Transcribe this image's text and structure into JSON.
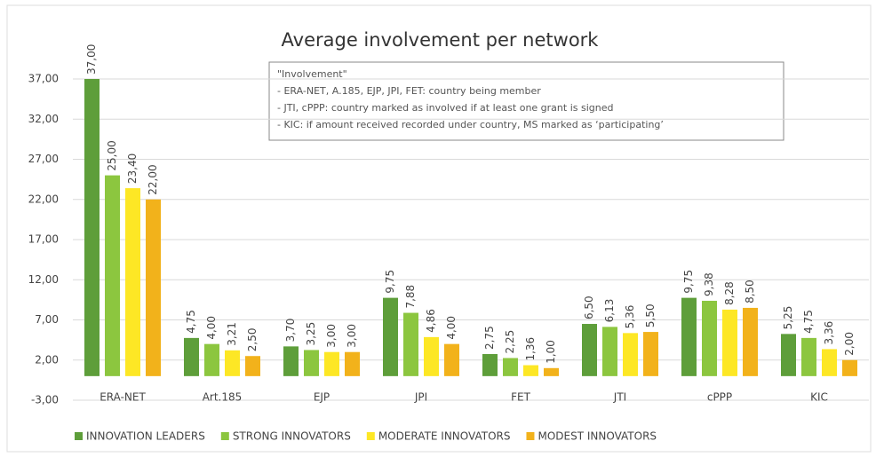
{
  "chart_data": {
    "type": "bar",
    "title": "Average involvement per network",
    "annotation": [
      "\"Involvement\"",
      "- ERA-NET, A.185, EJP, JPI, FET: country being member",
      "- JTI, cPPP: country marked as involved if at least one grant is signed",
      "- KIC: if amount received recorded under country, MS marked as ‘participating’"
    ],
    "categories": [
      "ERA-NET",
      "Art.185",
      "EJP",
      "JPI",
      "FET",
      "JTI",
      "cPPP",
      "KIC"
    ],
    "series": [
      {
        "name": "INNOVATION LEADERS",
        "color": "#5e9e3a",
        "values": [
          37,
          4.75,
          3.7,
          9.75,
          2.75,
          6.5,
          9.75,
          5.25
        ],
        "value_labels": [
          "37,00",
          "4,75",
          "3,70",
          "9,75",
          "2,75",
          "6,50",
          "9,75",
          "5,25"
        ]
      },
      {
        "name": "STRONG INNOVATORS",
        "color": "#8cc63f",
        "values": [
          25,
          4,
          3.25,
          7.88,
          2.25,
          6.13,
          9.38,
          4.75
        ],
        "value_labels": [
          "25,00",
          "4,00",
          "3,25",
          "7,88",
          "2,25",
          "6,13",
          "9,38",
          "4,75"
        ]
      },
      {
        "name": "MODERATE INNOVATORS",
        "color": "#fde725",
        "values": [
          23.4,
          3.21,
          3,
          4.86,
          1.36,
          5.36,
          8.28,
          3.36
        ],
        "value_labels": [
          "23,40",
          "3,21",
          "3,00",
          "4,86",
          "1,36",
          "5,36",
          "8,28",
          "3,36"
        ]
      },
      {
        "name": "MODEST INNOVATORS",
        "color": "#f2b21b",
        "values": [
          22,
          2.5,
          3,
          4,
          1,
          5.5,
          8.5,
          2
        ],
        "value_labels": [
          "22,00",
          "2,50",
          "3,00",
          "4,00",
          "1,00",
          "5,50",
          "8,50",
          "2,00"
        ]
      }
    ],
    "ylim": [
      -3,
      37
    ],
    "yticks": [
      {
        "value": -3,
        "label": "-3,00"
      },
      {
        "value": 2,
        "label": "2,00"
      },
      {
        "value": 7,
        "label": "7,00"
      },
      {
        "value": 12,
        "label": "12,00"
      },
      {
        "value": 17,
        "label": "17,00"
      },
      {
        "value": 22,
        "label": "22,00"
      },
      {
        "value": 27,
        "label": "27,00"
      },
      {
        "value": 32,
        "label": "32,00"
      },
      {
        "value": 37,
        "label": "37,00"
      }
    ],
    "grid": true,
    "legend": "bottom"
  }
}
